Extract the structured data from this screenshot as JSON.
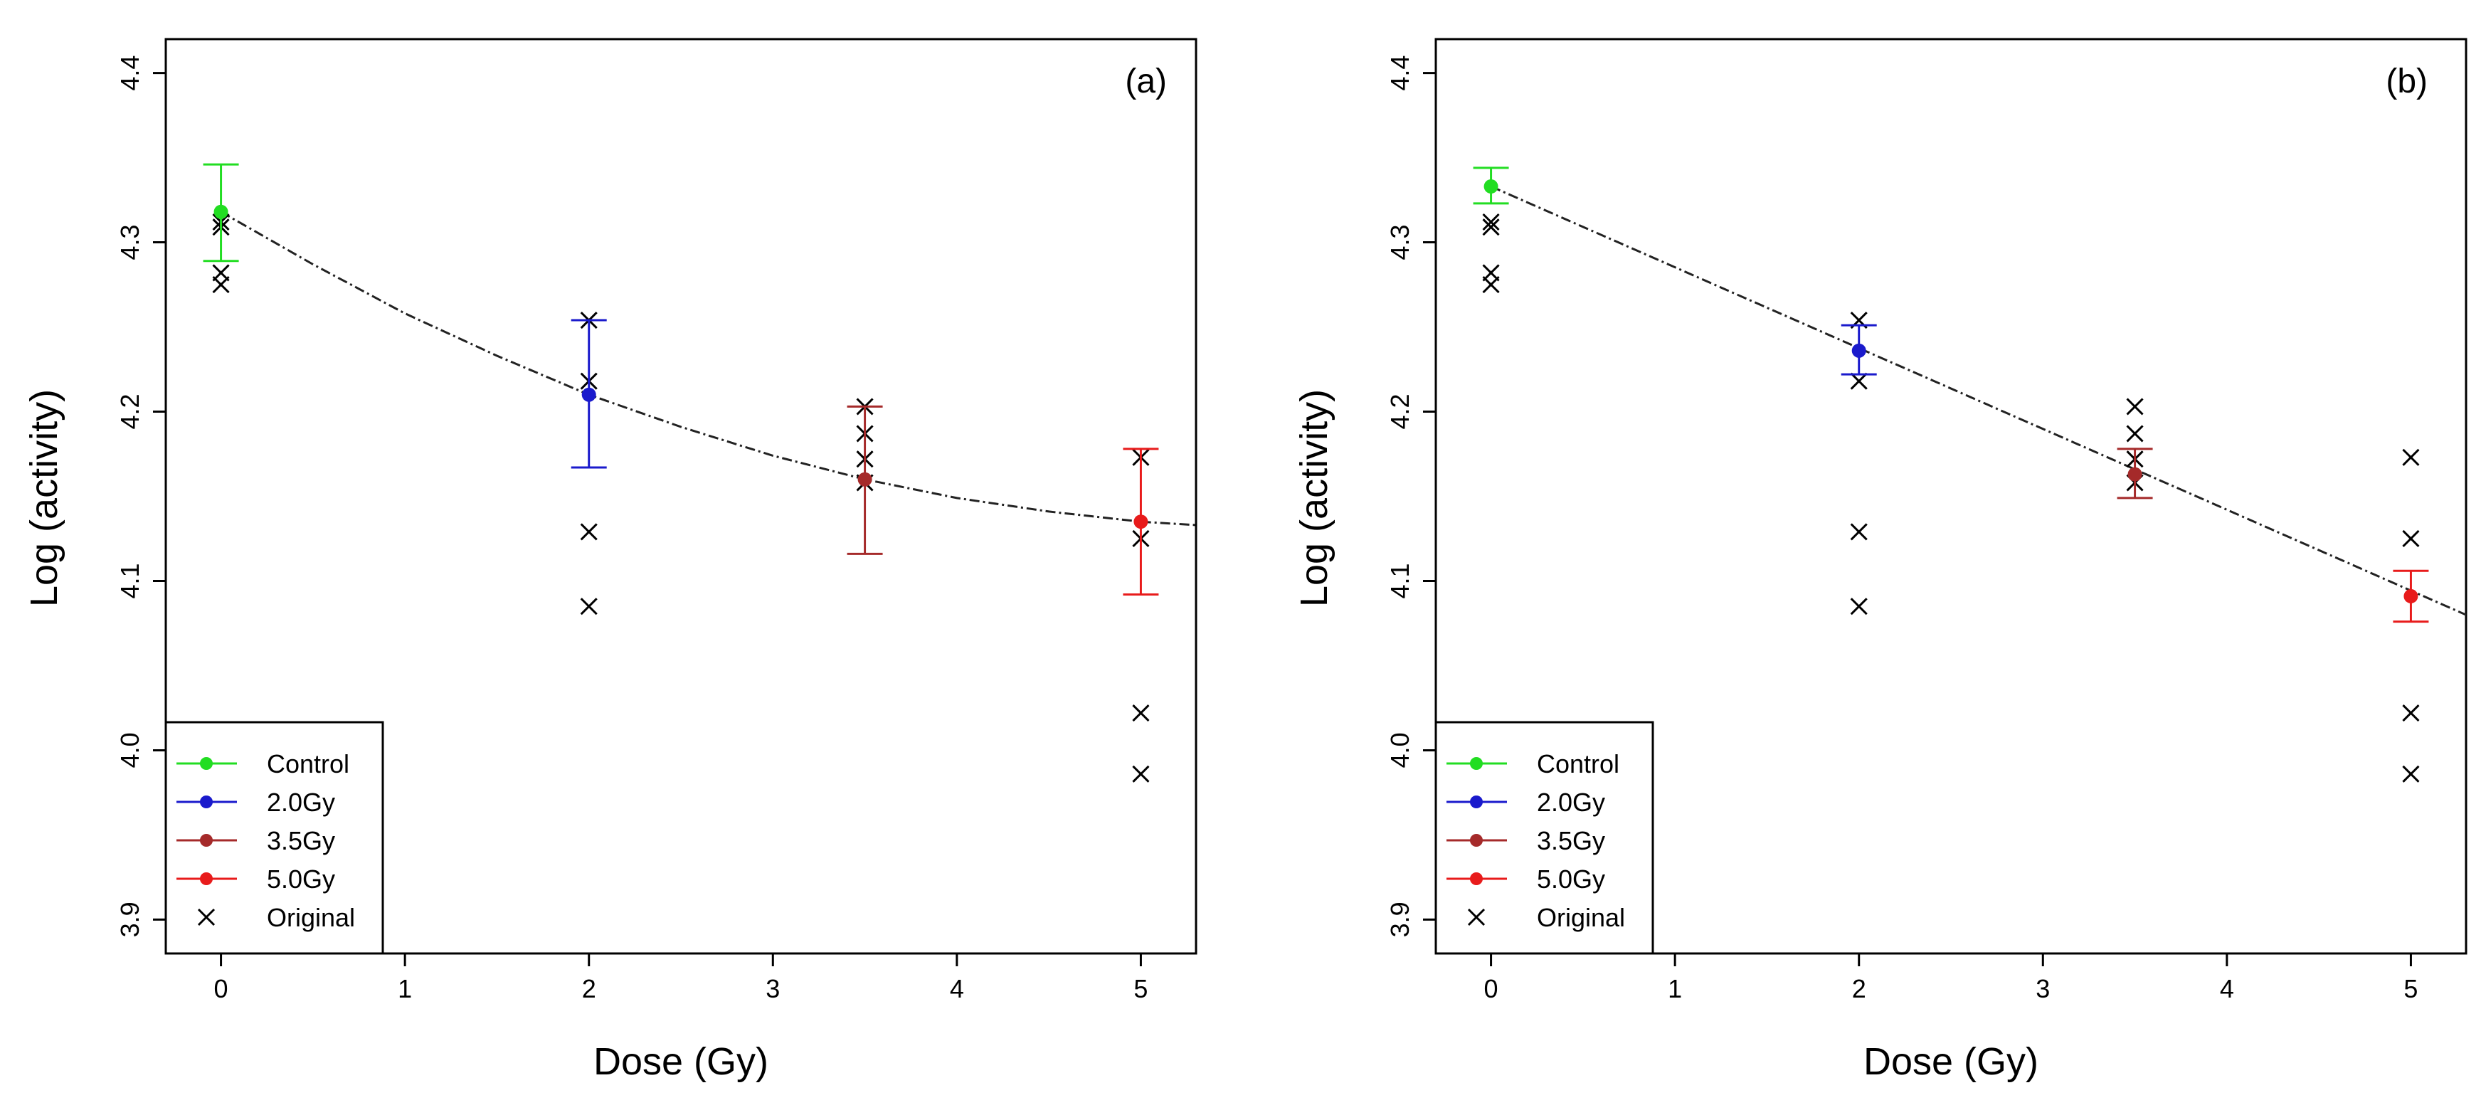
{
  "chart_data": [
    {
      "type": "scatter",
      "panel_label": "(a)",
      "xlabel": "Dose (Gy)",
      "ylabel": "Log (activity)",
      "xlim": [
        -0.3,
        5.3
      ],
      "ylim": [
        3.88,
        4.42
      ],
      "x_ticks": [
        "0",
        "1",
        "2",
        "3",
        "4",
        "5"
      ],
      "y_ticks": [
        "3.9",
        "4.0",
        "4.1",
        "4.2",
        "4.3",
        "4.4"
      ],
      "legend": {
        "position": "bottom-left",
        "entries": [
          {
            "label": "Control",
            "color": "#22dd22",
            "marker": "dot"
          },
          {
            "label": "2.0Gy",
            "color": "#1a1acc",
            "marker": "dot"
          },
          {
            "label": "3.5Gy",
            "color": "#a52a2a",
            "marker": "dot"
          },
          {
            "label": "5.0Gy",
            "color": "#e81b1b",
            "marker": "dot"
          },
          {
            "label": "Original",
            "color": "#000000",
            "marker": "x"
          }
        ]
      },
      "groups": [
        {
          "name": "Control",
          "dose": 0,
          "mean": 4.318,
          "lower": 4.289,
          "upper": 4.346,
          "color": "#22dd22"
        },
        {
          "name": "2.0Gy",
          "dose": 2,
          "mean": 4.21,
          "lower": 4.167,
          "upper": 4.254,
          "color": "#1a1acc"
        },
        {
          "name": "3.5Gy",
          "dose": 3.5,
          "mean": 4.16,
          "lower": 4.116,
          "upper": 4.203,
          "color": "#a52a2a"
        },
        {
          "name": "5.0Gy",
          "dose": 5,
          "mean": 4.135,
          "lower": 4.092,
          "upper": 4.178,
          "color": "#e81b1b"
        }
      ],
      "original": [
        {
          "x": 0,
          "y": 4.312
        },
        {
          "x": 0,
          "y": 4.309
        },
        {
          "x": 0,
          "y": 4.282
        },
        {
          "x": 0,
          "y": 4.275
        },
        {
          "x": 2,
          "y": 4.254
        },
        {
          "x": 2,
          "y": 4.218
        },
        {
          "x": 2,
          "y": 4.129
        },
        {
          "x": 2,
          "y": 4.085
        },
        {
          "x": 3.5,
          "y": 4.203
        },
        {
          "x": 3.5,
          "y": 4.187
        },
        {
          "x": 3.5,
          "y": 4.172
        },
        {
          "x": 3.5,
          "y": 4.158
        },
        {
          "x": 5,
          "y": 4.173
        },
        {
          "x": 5,
          "y": 4.125
        },
        {
          "x": 5,
          "y": 4.022
        },
        {
          "x": 5,
          "y": 3.986
        }
      ],
      "fit": {
        "x": [
          0,
          0.5,
          1,
          1.5,
          2,
          2.5,
          3,
          3.5,
          4,
          4.5,
          5,
          5.3
        ],
        "y": [
          4.318,
          4.287,
          4.258,
          4.233,
          4.21,
          4.191,
          4.174,
          4.16,
          4.149,
          4.141,
          4.135,
          4.133
        ]
      }
    },
    {
      "type": "scatter",
      "panel_label": "(b)",
      "xlabel": "Dose (Gy)",
      "ylabel": "Log (activity)",
      "xlim": [
        -0.3,
        5.3
      ],
      "ylim": [
        3.88,
        4.42
      ],
      "x_ticks": [
        "0",
        "1",
        "2",
        "3",
        "4",
        "5"
      ],
      "y_ticks": [
        "3.9",
        "4.0",
        "4.1",
        "4.2",
        "4.3",
        "4.4"
      ],
      "legend": {
        "position": "bottom-left",
        "entries": [
          {
            "label": "Control",
            "color": "#22dd22",
            "marker": "dot"
          },
          {
            "label": "2.0Gy",
            "color": "#1a1acc",
            "marker": "dot"
          },
          {
            "label": "3.5Gy",
            "color": "#a52a2a",
            "marker": "dot"
          },
          {
            "label": "5.0Gy",
            "color": "#e81b1b",
            "marker": "dot"
          },
          {
            "label": "Original",
            "color": "#000000",
            "marker": "x"
          }
        ]
      },
      "groups": [
        {
          "name": "Control",
          "dose": 0,
          "mean": 4.333,
          "lower": 4.323,
          "upper": 4.344,
          "color": "#22dd22"
        },
        {
          "name": "2.0Gy",
          "dose": 2,
          "mean": 4.236,
          "lower": 4.222,
          "upper": 4.251,
          "color": "#1a1acc"
        },
        {
          "name": "3.5Gy",
          "dose": 3.5,
          "mean": 4.163,
          "lower": 4.149,
          "upper": 4.178,
          "color": "#a52a2a"
        },
        {
          "name": "5.0Gy",
          "dose": 5,
          "mean": 4.091,
          "lower": 4.076,
          "upper": 4.106,
          "color": "#e81b1b"
        }
      ],
      "original": [
        {
          "x": 0,
          "y": 4.312
        },
        {
          "x": 0,
          "y": 4.309
        },
        {
          "x": 0,
          "y": 4.282
        },
        {
          "x": 0,
          "y": 4.275
        },
        {
          "x": 2,
          "y": 4.254
        },
        {
          "x": 2,
          "y": 4.218
        },
        {
          "x": 2,
          "y": 4.129
        },
        {
          "x": 2,
          "y": 4.085
        },
        {
          "x": 3.5,
          "y": 4.203
        },
        {
          "x": 3.5,
          "y": 4.187
        },
        {
          "x": 3.5,
          "y": 4.172
        },
        {
          "x": 3.5,
          "y": 4.158
        },
        {
          "x": 5,
          "y": 4.173
        },
        {
          "x": 5,
          "y": 4.125
        },
        {
          "x": 5,
          "y": 4.022
        },
        {
          "x": 5,
          "y": 3.986
        }
      ],
      "fit": {
        "x": [
          0,
          5.3
        ],
        "y": [
          4.333,
          4.08
        ]
      }
    }
  ]
}
